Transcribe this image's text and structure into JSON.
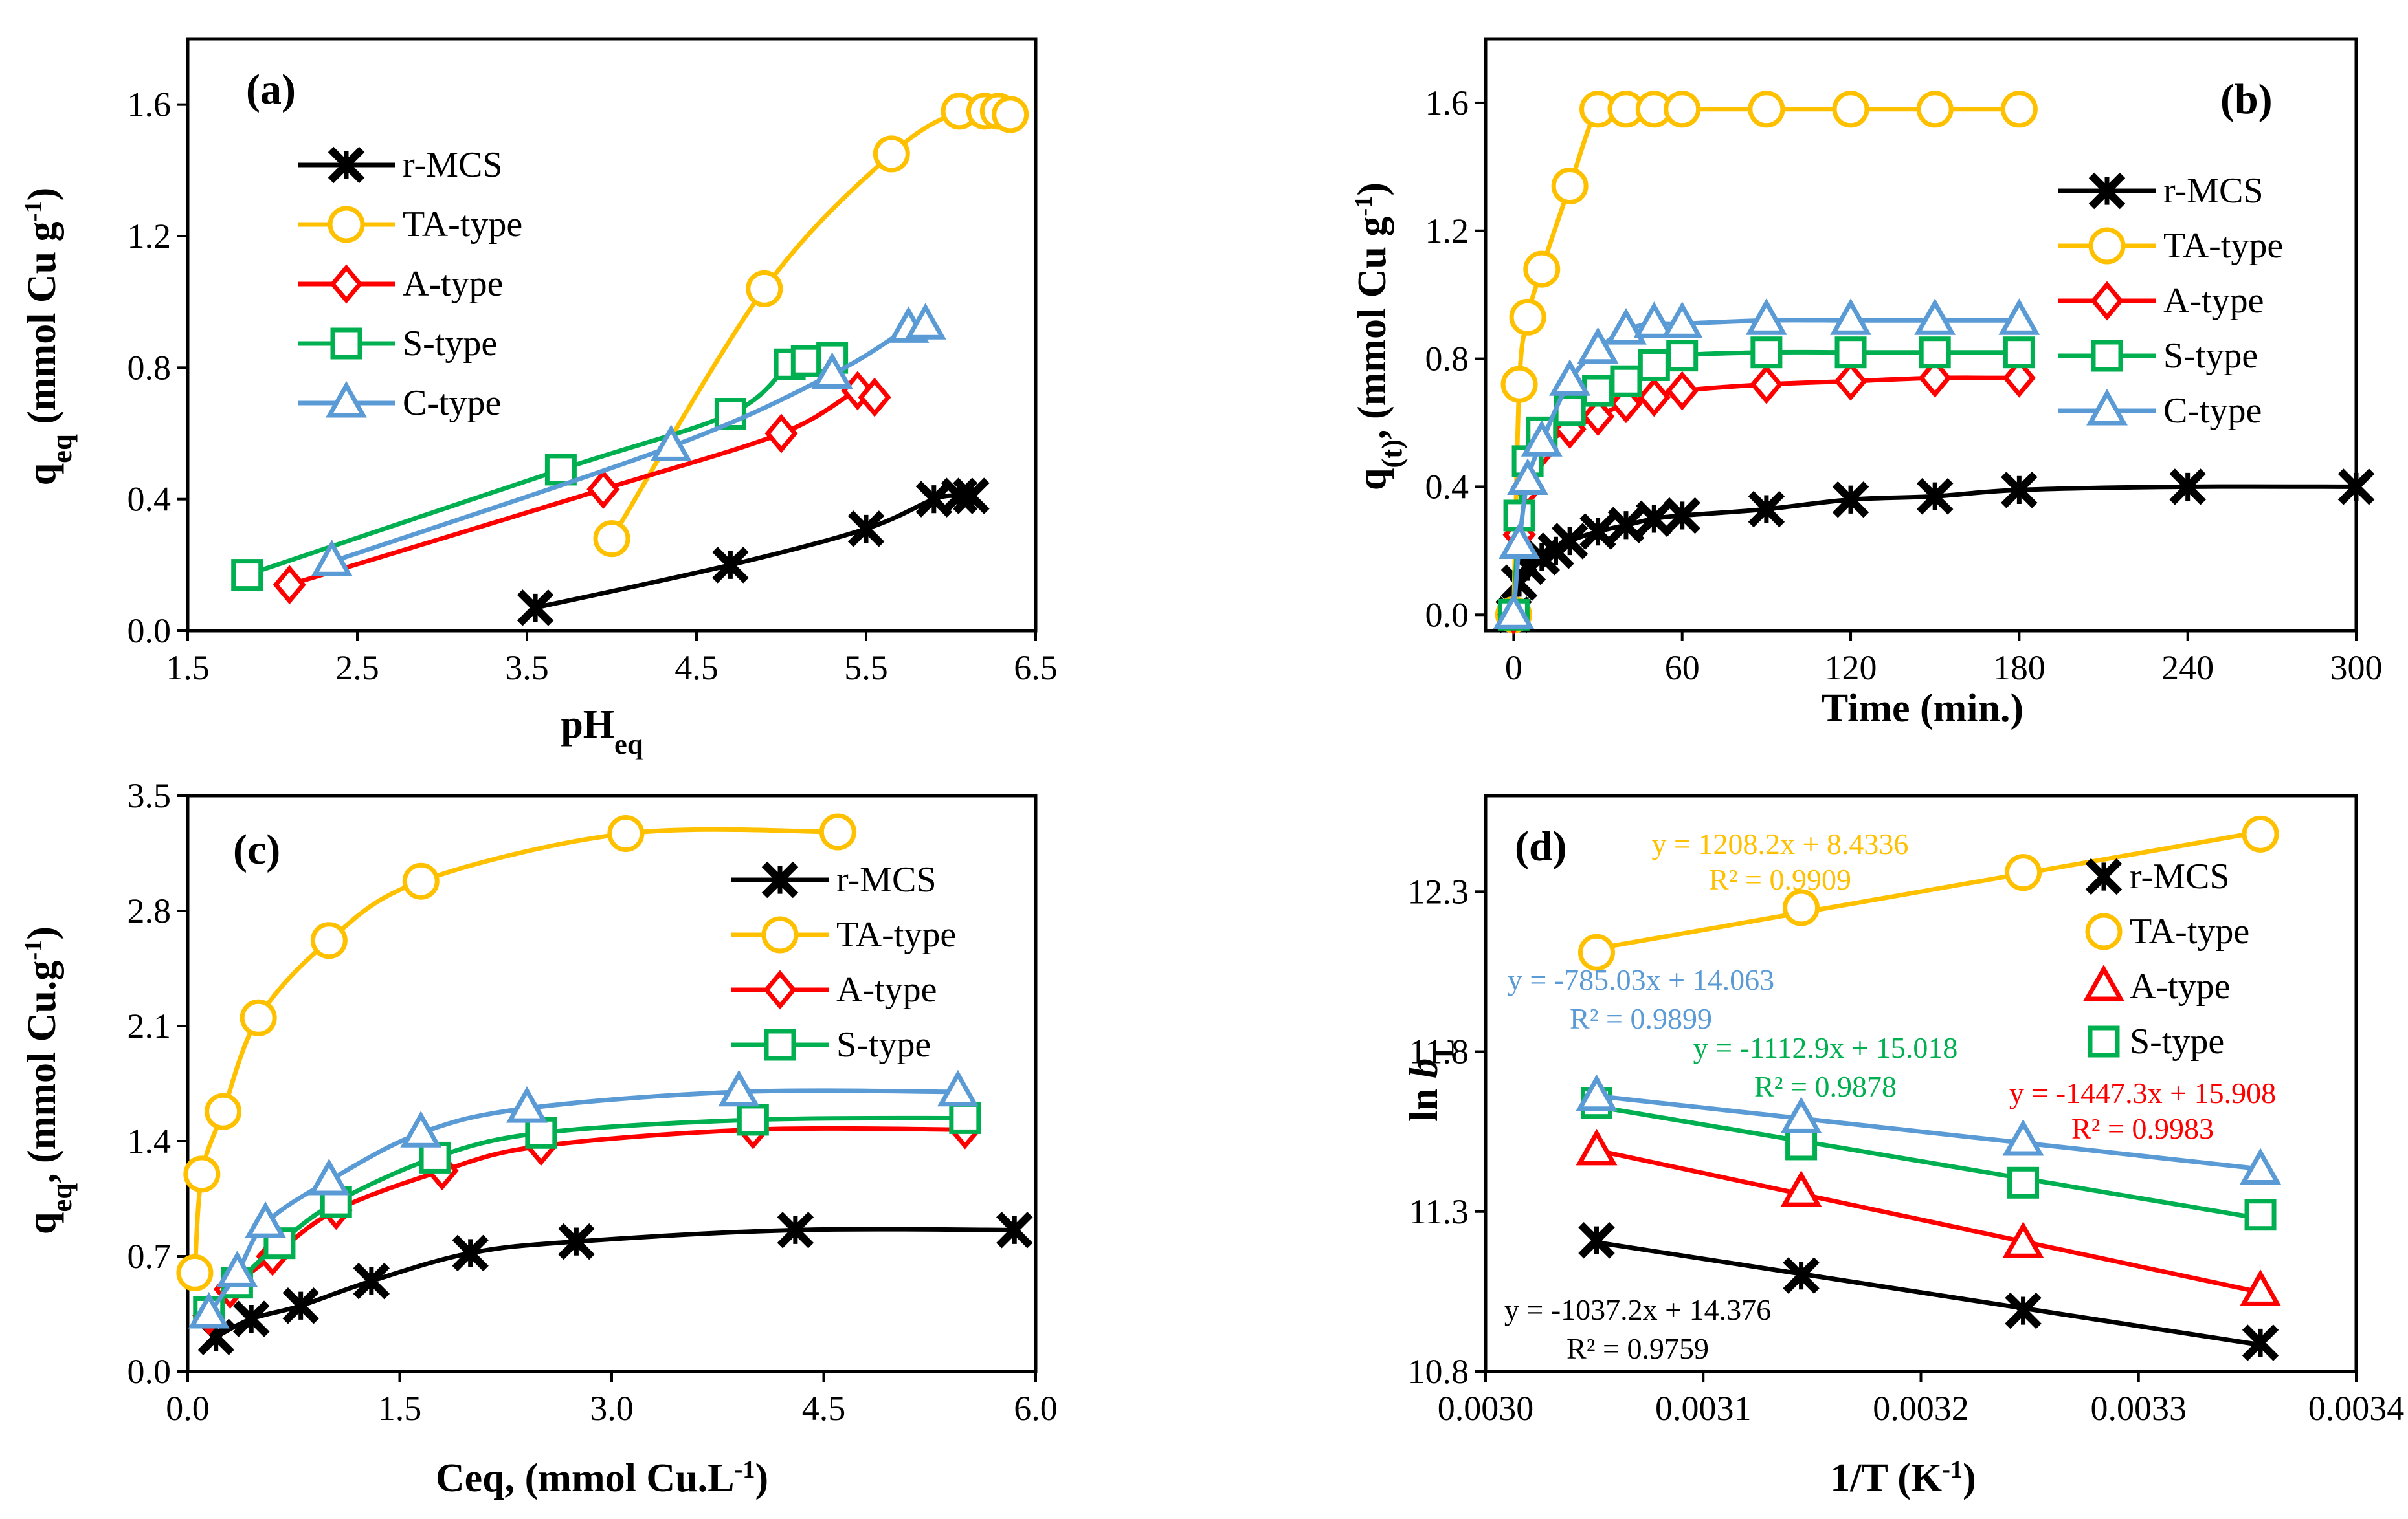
{
  "colors": {
    "r-MCS": "#000000",
    "TA-type": "#FFC000",
    "A-type": "#FF0000",
    "S-type": "#00B050",
    "C-type": "#5B9BD5"
  },
  "chart_data": [
    {
      "type": "line",
      "panel_label": "(a)",
      "title": "",
      "xlabel": "pH",
      "xlabel_sub": "eq",
      "ylabel": "q",
      "ylabel_sub": "eq",
      "ylabel_rest": " (mmol Cu g",
      "ylabel_sup": "-1",
      "ylabel_end": ")",
      "xlim": [
        1.5,
        6.5
      ],
      "ylim": [
        0.0,
        1.8
      ],
      "xticks": [
        "1.5",
        "2.5",
        "3.5",
        "4.5",
        "5.5",
        "6.5"
      ],
      "yticks": [
        "0.0",
        "0.4",
        "0.8",
        "1.2",
        "1.6"
      ],
      "legend_position": "upper-left",
      "series": [
        {
          "name": "r-MCS",
          "marker": "x",
          "x": [
            3.55,
            4.7,
            5.5,
            5.9,
            6.05,
            6.12
          ],
          "y": [
            0.07,
            0.2,
            0.31,
            0.4,
            0.41,
            0.41
          ]
        },
        {
          "name": "TA-type",
          "marker": "o",
          "x": [
            4.0,
            4.9,
            5.65,
            6.05,
            6.2,
            6.28,
            6.35
          ],
          "y": [
            0.28,
            1.04,
            1.45,
            1.58,
            1.58,
            1.58,
            1.57
          ]
        },
        {
          "name": "A-type",
          "marker": "d",
          "x": [
            2.1,
            3.95,
            5.0,
            5.45,
            5.55
          ],
          "y": [
            0.14,
            0.43,
            0.6,
            0.73,
            0.71
          ]
        },
        {
          "name": "S-type",
          "marker": "s",
          "x": [
            1.85,
            3.7,
            4.7,
            5.05,
            5.15,
            5.3
          ],
          "y": [
            0.17,
            0.49,
            0.66,
            0.81,
            0.82,
            0.83
          ]
        },
        {
          "name": "C-type",
          "marker": "t",
          "x": [
            2.35,
            4.35,
            5.3,
            5.75,
            5.85
          ],
          "y": [
            0.21,
            0.56,
            0.78,
            0.92,
            0.93
          ]
        }
      ]
    },
    {
      "type": "line",
      "panel_label": "(b)",
      "title": "",
      "xlabel": "Time (min.)",
      "ylabel": "q",
      "ylabel_sub": "(t)",
      "ylabel_rest": ", (mmol Cu g",
      "ylabel_sup": "-1",
      "ylabel_end": ")",
      "xlim": [
        -10,
        300
      ],
      "ylim": [
        -0.05,
        1.8
      ],
      "xticks": [
        "0",
        "60",
        "120",
        "180",
        "240",
        "300"
      ],
      "xtick_values": [
        0,
        60,
        120,
        180,
        240,
        300
      ],
      "yticks": [
        "0.0",
        "0.4",
        "0.8",
        "1.2",
        "1.6"
      ],
      "legend_position": "right",
      "series": [
        {
          "name": "r-MCS",
          "marker": "x",
          "x": [
            0,
            2,
            5,
            10,
            15,
            20,
            30,
            40,
            50,
            60,
            90,
            120,
            150,
            180,
            240,
            300
          ],
          "y": [
            0.0,
            0.1,
            0.15,
            0.18,
            0.2,
            0.23,
            0.26,
            0.28,
            0.3,
            0.31,
            0.33,
            0.36,
            0.37,
            0.39,
            0.4,
            0.4
          ]
        },
        {
          "name": "TA-type",
          "marker": "o",
          "x": [
            0,
            2,
            5,
            10,
            20,
            30,
            40,
            50,
            60,
            90,
            120,
            150,
            180
          ],
          "y": [
            0.0,
            0.72,
            0.93,
            1.08,
            1.34,
            1.58,
            1.58,
            1.58,
            1.58,
            1.58,
            1.58,
            1.58,
            1.58
          ]
        },
        {
          "name": "A-type",
          "marker": "d",
          "x": [
            0,
            2,
            5,
            10,
            20,
            30,
            40,
            50,
            60,
            90,
            120,
            150,
            180
          ],
          "y": [
            0.0,
            0.25,
            0.4,
            0.52,
            0.58,
            0.62,
            0.66,
            0.68,
            0.7,
            0.72,
            0.73,
            0.74,
            0.74
          ]
        },
        {
          "name": "S-type",
          "marker": "s",
          "x": [
            0,
            2,
            5,
            10,
            20,
            30,
            40,
            50,
            60,
            90,
            120,
            150,
            180
          ],
          "y": [
            0.0,
            0.31,
            0.48,
            0.57,
            0.64,
            0.7,
            0.73,
            0.78,
            0.81,
            0.82,
            0.82,
            0.82,
            0.82
          ]
        },
        {
          "name": "C-type",
          "marker": "t",
          "x": [
            0,
            2,
            5,
            10,
            20,
            30,
            40,
            50,
            60,
            90,
            120,
            150,
            180
          ],
          "y": [
            0.0,
            0.22,
            0.42,
            0.54,
            0.73,
            0.83,
            0.89,
            0.91,
            0.91,
            0.92,
            0.92,
            0.92,
            0.92
          ]
        }
      ]
    },
    {
      "type": "line",
      "panel_label": "(c)",
      "title": "",
      "xlabel": "Ceq, (mmol Cu.L",
      "xlabel_sup": "-1",
      "xlabel_end": ")",
      "ylabel": "q",
      "ylabel_sub": "eq",
      "ylabel_rest": ", (mmol Cu.g",
      "ylabel_sup": "-1",
      "ylabel_end": ")",
      "xlim": [
        0.0,
        6.0
      ],
      "ylim": [
        0.0,
        3.5
      ],
      "xticks": [
        "0.0",
        "1.5",
        "3.0",
        "4.5",
        "6.0"
      ],
      "yticks": [
        "0.0",
        "0.7",
        "1.4",
        "2.1",
        "2.8",
        "3.5"
      ],
      "legend_position": "upper-right",
      "series": [
        {
          "name": "r-MCS",
          "marker": "x",
          "x": [
            0.2,
            0.45,
            0.8,
            1.3,
            2.0,
            2.75,
            4.3,
            5.85
          ],
          "y": [
            0.21,
            0.32,
            0.4,
            0.55,
            0.72,
            0.79,
            0.86,
            0.86
          ]
        },
        {
          "name": "TA-type",
          "marker": "o",
          "x": [
            0.05,
            0.1,
            0.25,
            0.5,
            1.0,
            1.65,
            3.1,
            4.6
          ],
          "y": [
            0.6,
            1.2,
            1.58,
            2.15,
            2.62,
            2.98,
            3.27,
            3.28
          ]
        },
        {
          "name": "A-type",
          "marker": "d",
          "x": [
            0.15,
            0.3,
            0.6,
            1.05,
            1.8,
            2.5,
            4.0,
            5.5
          ],
          "y": [
            0.34,
            0.5,
            0.7,
            0.98,
            1.22,
            1.37,
            1.47,
            1.47
          ]
        },
        {
          "name": "S-type",
          "marker": "s",
          "x": [
            0.15,
            0.35,
            0.65,
            1.05,
            1.75,
            2.5,
            4.0,
            5.5
          ],
          "y": [
            0.36,
            0.54,
            0.78,
            1.03,
            1.3,
            1.45,
            1.53,
            1.54
          ]
        },
        {
          "name": "C-type",
          "marker": "t",
          "x": [
            0.15,
            0.35,
            0.55,
            1.0,
            1.65,
            2.4,
            3.9,
            5.45
          ],
          "y": [
            0.35,
            0.6,
            0.9,
            1.16,
            1.45,
            1.6,
            1.7,
            1.7
          ]
        }
      ],
      "legend_entries": [
        "r-MCS",
        "TA-type",
        "A-type",
        "S-type"
      ]
    },
    {
      "type": "scatter",
      "panel_label": "(d)",
      "title": "",
      "xlabel": "1/T (K",
      "xlabel_sup": "-1",
      "xlabel_end": ")",
      "ylabel": "ln ",
      "ylabel_italic": "b",
      "ylabel_sub": "L",
      "xlim": [
        0.003,
        0.0034
      ],
      "ylim": [
        10.8,
        12.6
      ],
      "xticks": [
        "0.0030",
        "0.0031",
        "0.0032",
        "0.0033",
        "0.0034"
      ],
      "yticks": [
        "10.8",
        "11.3",
        "11.8",
        "12.3"
      ],
      "ytick_values": [
        10.8,
        11.3,
        11.8,
        12.3
      ],
      "legend_position": "right",
      "series": [
        {
          "name": "r-MCS",
          "marker": "x",
          "x": [
            0.003051,
            0.003145,
            0.003247,
            0.003356
          ],
          "y": [
            11.21,
            11.1,
            10.99,
            10.89
          ]
        },
        {
          "name": "TA-type",
          "marker": "o",
          "x": [
            0.003051,
            0.003145,
            0.003247,
            0.003356
          ],
          "y": [
            12.11,
            12.25,
            12.36,
            12.48
          ]
        },
        {
          "name": "A-type",
          "marker": "t",
          "x": [
            0.003051,
            0.003145,
            0.003247,
            0.003356
          ],
          "y": [
            11.49,
            11.36,
            11.2,
            11.05
          ]
        },
        {
          "name": "S-type",
          "marker": "s",
          "x": [
            0.003051,
            0.003145,
            0.003247,
            0.003356
          ],
          "y": [
            11.64,
            11.51,
            11.39,
            11.29
          ]
        },
        {
          "name": "C-type",
          "marker": "t",
          "x": [
            0.003051,
            0.003145,
            0.003247,
            0.003356
          ],
          "y": [
            11.66,
            11.59,
            11.52,
            11.43
          ]
        }
      ],
      "fits": [
        {
          "series": "TA-type",
          "equation": "y = 1208.2x + 8.4336",
          "r2": "R² = 0.9909"
        },
        {
          "series": "C-type",
          "equation": "y = -785.03x + 14.063",
          "r2": "R² = 0.9899"
        },
        {
          "series": "S-type",
          "equation": "y = -1112.9x + 15.018",
          "r2": "R² = 0.9878"
        },
        {
          "series": "A-type",
          "equation": "y = -1447.3x + 15.908",
          "r2": "R² = 0.9983"
        },
        {
          "series": "r-MCS",
          "equation": "y = -1037.2x + 14.376",
          "r2": "R² = 0.9759"
        }
      ],
      "legend_entries": [
        "r-MCS",
        "TA-type",
        "A-type",
        "S-type"
      ]
    }
  ]
}
